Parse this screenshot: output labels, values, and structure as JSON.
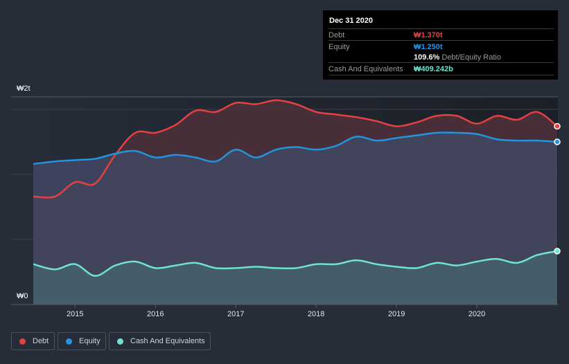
{
  "tooltip": {
    "date": "Dec 31 2020",
    "rows": {
      "debt": {
        "label": "Debt",
        "value": "₩1.370t",
        "color": "#e64141"
      },
      "equity": {
        "label": "Equity",
        "value": "₩1.250t",
        "color": "#2394df"
      },
      "ratio": {
        "value": "109.6%",
        "label": "Debt/Equity Ratio"
      },
      "cash": {
        "label": "Cash And Equivalents",
        "value": "₩409.242b",
        "color": "#6de5d0"
      }
    }
  },
  "legend": [
    {
      "label": "Debt",
      "color": "#e64141"
    },
    {
      "label": "Equity",
      "color": "#2394df"
    },
    {
      "label": "Cash And Equivalents",
      "color": "#6de5d0"
    }
  ],
  "chart_data": {
    "type": "area",
    "title": "",
    "xlabel": "",
    "ylabel": "",
    "y_unit": "KRW trillions",
    "ylim": [
      0,
      1.6
    ],
    "y_tick_labels": [
      "₩0",
      "₩2t"
    ],
    "x_tick_labels": [
      "2015",
      "2016",
      "2017",
      "2018",
      "2019",
      "2020"
    ],
    "x_ticks": [
      2015,
      2016,
      2017,
      2018,
      2019,
      2020
    ],
    "xlim": [
      2014.48,
      2021.0
    ],
    "grid": true,
    "legend_position": "bottom-left",
    "x": [
      2014.48,
      2014.75,
      2015.0,
      2015.25,
      2015.5,
      2015.75,
      2016.0,
      2016.25,
      2016.5,
      2016.75,
      2017.0,
      2017.25,
      2017.5,
      2017.75,
      2018.0,
      2018.25,
      2018.5,
      2018.75,
      2019.0,
      2019.25,
      2019.5,
      2019.75,
      2020.0,
      2020.25,
      2020.5,
      2020.75,
      2021.0
    ],
    "series": [
      {
        "name": "Debt",
        "color": "#e64141",
        "values": [
          0.83,
          0.83,
          0.94,
          0.93,
          1.15,
          1.32,
          1.32,
          1.38,
          1.49,
          1.48,
          1.55,
          1.54,
          1.57,
          1.54,
          1.48,
          1.46,
          1.44,
          1.41,
          1.37,
          1.4,
          1.45,
          1.45,
          1.39,
          1.45,
          1.42,
          1.48,
          1.37
        ]
      },
      {
        "name": "Equity",
        "color": "#2394df",
        "values": [
          1.08,
          1.1,
          1.11,
          1.12,
          1.16,
          1.18,
          1.13,
          1.15,
          1.13,
          1.1,
          1.19,
          1.13,
          1.19,
          1.21,
          1.19,
          1.22,
          1.29,
          1.26,
          1.28,
          1.3,
          1.32,
          1.32,
          1.31,
          1.27,
          1.26,
          1.26,
          1.25
        ]
      },
      {
        "name": "Cash And Equivalents",
        "color": "#6de5d0",
        "values": [
          0.31,
          0.27,
          0.31,
          0.22,
          0.3,
          0.33,
          0.28,
          0.3,
          0.32,
          0.28,
          0.28,
          0.29,
          0.28,
          0.28,
          0.31,
          0.31,
          0.34,
          0.31,
          0.29,
          0.28,
          0.32,
          0.3,
          0.33,
          0.35,
          0.32,
          0.38,
          0.41
        ]
      }
    ]
  }
}
